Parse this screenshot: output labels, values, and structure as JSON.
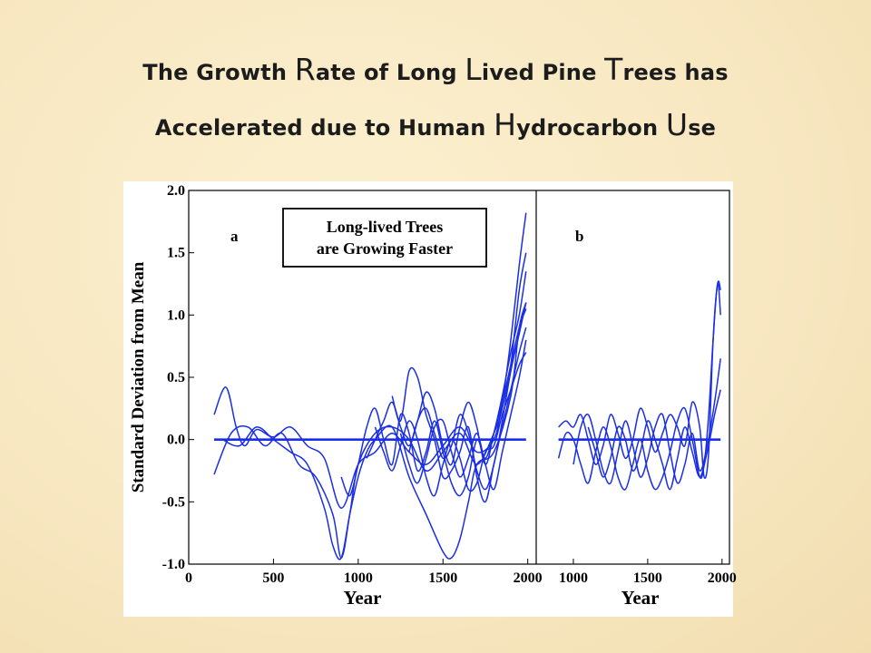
{
  "slide": {
    "title_line1": "The Growth Rate of Long Lived Pine Trees has",
    "title_line2": "Accelerated due to Human Hydrocarbon Use"
  },
  "chart_data": [
    {
      "type": "line",
      "panel_label": "a",
      "annotation": "Long-lived Trees are Growing Faster",
      "annotation_lines": [
        "Long-lived Trees",
        "are Growing Faster"
      ],
      "xlabel": "Year",
      "ylabel": "Standard Deviation from Mean",
      "xlim": [
        0,
        2050
      ],
      "ylim": [
        -1.0,
        2.0
      ],
      "xticks": [
        0,
        500,
        1000,
        1500,
        2000
      ],
      "yticks": [
        -1.0,
        -0.5,
        0.0,
        0.5,
        1.0,
        1.5,
        2.0
      ],
      "ytick_labels": [
        "-1.0",
        "-0.5",
        "0.0",
        "0.5",
        "1.0",
        "1.5",
        "2.0"
      ],
      "color": "#1a2ee6",
      "series": [
        {
          "x": [
            150,
            220,
            280,
            330,
            400,
            500,
            600,
            700,
            800,
            900,
            1000,
            1100,
            1200,
            1300,
            1400,
            1500,
            1600,
            1700,
            1800,
            1850,
            1900,
            1950,
            1990
          ],
          "y": [
            0.2,
            0.42,
            0.1,
            -0.05,
            0.08,
            0.02,
            0.1,
            -0.05,
            -0.15,
            -0.55,
            -0.2,
            -0.1,
            0.05,
            -0.1,
            -0.2,
            -0.05,
            0.1,
            -0.1,
            0.0,
            0.3,
            0.8,
            1.4,
            1.82
          ]
        },
        {
          "x": [
            150,
            250,
            350,
            450,
            550,
            650,
            750,
            850,
            900,
            950,
            1000,
            1100,
            1200,
            1300,
            1400,
            1500,
            1600,
            1700,
            1800,
            1850,
            1900,
            1950,
            1990
          ],
          "y": [
            -0.28,
            0.05,
            0.1,
            -0.05,
            0.05,
            -0.2,
            -0.3,
            -0.6,
            -0.95,
            -0.6,
            -0.2,
            0.05,
            0.1,
            0.0,
            -0.25,
            -0.1,
            0.05,
            -0.2,
            0.05,
            0.25,
            0.6,
            1.2,
            1.5
          ]
        },
        {
          "x": [
            200,
            300,
            400,
            500,
            600,
            700,
            800,
            850,
            900,
            950,
            1000,
            1050,
            1100,
            1200,
            1300,
            1400,
            1500,
            1550,
            1600,
            1650,
            1700,
            1800,
            1900,
            1950,
            1990
          ],
          "y": [
            0.0,
            -0.05,
            0.1,
            0.0,
            -0.1,
            -0.2,
            -0.55,
            -0.85,
            -0.95,
            -0.6,
            -0.3,
            -0.1,
            0.0,
            0.1,
            -0.3,
            -0.6,
            -0.9,
            -0.95,
            -0.8,
            -0.5,
            -0.2,
            -0.1,
            0.35,
            0.9,
            1.1
          ]
        },
        {
          "x": [
            150,
            250,
            350,
            450,
            550,
            650,
            750,
            850,
            950,
            1050,
            1150,
            1250,
            1350,
            1450,
            1550,
            1650,
            1750,
            1850,
            1900,
            1950,
            1990
          ],
          "y": [
            0.0,
            0.0,
            0.0,
            0.0,
            0.0,
            0.0,
            0.0,
            0.0,
            0.0,
            0.0,
            0.0,
            0.0,
            0.0,
            0.0,
            0.0,
            0.0,
            0.0,
            0.0,
            0.0,
            0.0,
            0.0
          ]
        },
        {
          "x": [
            900,
            950,
            1000,
            1050,
            1100,
            1150,
            1200,
            1250,
            1300,
            1350,
            1400,
            1450,
            1500,
            1550,
            1600,
            1650,
            1700,
            1750,
            1800,
            1850,
            1900,
            1950,
            1990
          ],
          "y": [
            -0.3,
            -0.45,
            -0.2,
            0.1,
            0.25,
            0.0,
            -0.2,
            0.2,
            0.05,
            -0.25,
            -0.1,
            0.15,
            -0.1,
            -0.35,
            -0.45,
            -0.3,
            0.0,
            -0.15,
            0.05,
            0.3,
            0.6,
            0.9,
            1.05
          ]
        },
        {
          "x": [
            1200,
            1250,
            1300,
            1350,
            1400,
            1450,
            1500,
            1550,
            1600,
            1650,
            1700,
            1750,
            1800,
            1850,
            1900,
            1950,
            1990
          ],
          "y": [
            0.35,
            0.15,
            0.55,
            0.5,
            0.2,
            0.0,
            -0.3,
            -0.25,
            -0.1,
            0.1,
            -0.3,
            -0.5,
            -0.2,
            0.1,
            0.4,
            0.7,
            0.9
          ]
        },
        {
          "x": [
            1050,
            1100,
            1150,
            1200,
            1250,
            1300,
            1350,
            1400,
            1450,
            1500,
            1550,
            1600,
            1650,
            1700,
            1750,
            1800,
            1850,
            1900,
            1950,
            1990
          ],
          "y": [
            -0.15,
            0.0,
            0.15,
            0.3,
            0.1,
            -0.05,
            0.15,
            0.38,
            0.25,
            -0.05,
            -0.2,
            0.1,
            0.3,
            0.1,
            -0.2,
            0.05,
            0.35,
            0.7,
            1.0,
            1.35
          ]
        },
        {
          "x": [
            1100,
            1150,
            1200,
            1250,
            1300,
            1350,
            1400,
            1450,
            1500,
            1550,
            1600,
            1650,
            1700,
            1750,
            1800,
            1850,
            1900,
            1950,
            1990
          ],
          "y": [
            0.1,
            -0.1,
            -0.25,
            -0.05,
            0.15,
            0.0,
            -0.3,
            -0.45,
            -0.2,
            0.0,
            -0.15,
            -0.4,
            -0.35,
            -0.1,
            -0.05,
            0.2,
            0.4,
            0.6,
            0.7
          ]
        },
        {
          "x": [
            1250,
            1300,
            1350,
            1400,
            1450,
            1500,
            1550,
            1600,
            1650,
            1700,
            1750,
            1800,
            1850,
            1900,
            1950,
            1990
          ],
          "y": [
            0.05,
            -0.2,
            -0.35,
            -0.15,
            0.1,
            0.15,
            -0.1,
            -0.3,
            -0.15,
            0.05,
            -0.2,
            -0.4,
            -0.1,
            0.2,
            0.5,
            0.8
          ]
        },
        {
          "x": [
            1300,
            1350,
            1400,
            1450,
            1500,
            1550,
            1600,
            1650,
            1700,
            1750,
            1800,
            1850,
            1900,
            1950,
            1990
          ],
          "y": [
            -0.1,
            0.15,
            0.25,
            0.05,
            -0.15,
            -0.05,
            0.2,
            0.05,
            -0.25,
            -0.4,
            -0.2,
            0.15,
            0.55,
            0.85,
            1.1
          ]
        }
      ]
    },
    {
      "type": "line",
      "panel_label": "b",
      "xlabel": "Year",
      "xlim": [
        750,
        2050
      ],
      "ylim": [
        -1.0,
        2.0
      ],
      "xticks": [
        1000,
        1500,
        2000
      ],
      "color": "#1a2ee6",
      "series": [
        {
          "x": [
            900,
            950,
            1000,
            1050,
            1100,
            1150,
            1200,
            1250,
            1300,
            1350,
            1400,
            1450,
            1500,
            1550,
            1600,
            1650,
            1700,
            1750,
            1800,
            1850,
            1880,
            1910,
            1940,
            1970,
            1990
          ],
          "y": [
            0.1,
            0.15,
            0.1,
            0.2,
            0.0,
            -0.2,
            -0.05,
            0.2,
            0.05,
            -0.15,
            0.0,
            0.25,
            0.1,
            -0.1,
            0.05,
            0.2,
            0.1,
            -0.05,
            0.3,
            0.1,
            -0.3,
            -0.1,
            0.8,
            1.25,
            1.2
          ]
        },
        {
          "x": [
            900,
            950,
            1000,
            1050,
            1100,
            1150,
            1200,
            1250,
            1300,
            1350,
            1400,
            1450,
            1500,
            1550,
            1600,
            1650,
            1700,
            1750,
            1800,
            1850,
            1880,
            1910,
            1940,
            1970,
            1990
          ],
          "y": [
            -0.15,
            0.05,
            0.0,
            -0.2,
            -0.35,
            -0.1,
            0.1,
            -0.05,
            -0.3,
            -0.4,
            -0.2,
            0.0,
            -0.25,
            -0.4,
            -0.3,
            -0.1,
            0.15,
            0.25,
            0.0,
            -0.3,
            -0.2,
            0.2,
            0.8,
            1.25,
            1.0
          ]
        },
        {
          "x": [
            900,
            1000,
            1100,
            1200,
            1300,
            1400,
            1500,
            1600,
            1700,
            1800,
            1900,
            1950,
            1990
          ],
          "y": [
            0.0,
            0.0,
            0.0,
            0.0,
            0.0,
            0.0,
            0.0,
            0.0,
            0.0,
            0.0,
            0.0,
            0.0,
            0.0
          ]
        },
        {
          "x": [
            1000,
            1050,
            1100,
            1150,
            1200,
            1250,
            1300,
            1350,
            1400,
            1450,
            1500,
            1550,
            1600,
            1650,
            1700,
            1750,
            1800,
            1850,
            1900,
            1950,
            1990
          ],
          "y": [
            -0.2,
            0.1,
            0.2,
            0.0,
            -0.25,
            -0.35,
            -0.1,
            0.15,
            -0.05,
            -0.3,
            -0.15,
            0.1,
            0.2,
            -0.1,
            -0.35,
            -0.2,
            0.05,
            -0.25,
            -0.05,
            0.3,
            0.65
          ]
        },
        {
          "x": [
            1100,
            1150,
            1200,
            1250,
            1300,
            1350,
            1400,
            1450,
            1500,
            1550,
            1600,
            1650,
            1700,
            1750,
            1800,
            1850,
            1900,
            1950,
            1990
          ],
          "y": [
            0.1,
            -0.1,
            -0.3,
            -0.15,
            0.1,
            0.0,
            -0.25,
            -0.1,
            0.15,
            0.0,
            -0.2,
            -0.4,
            -0.15,
            0.1,
            -0.1,
            -0.3,
            -0.1,
            0.2,
            0.4
          ]
        }
      ]
    }
  ]
}
